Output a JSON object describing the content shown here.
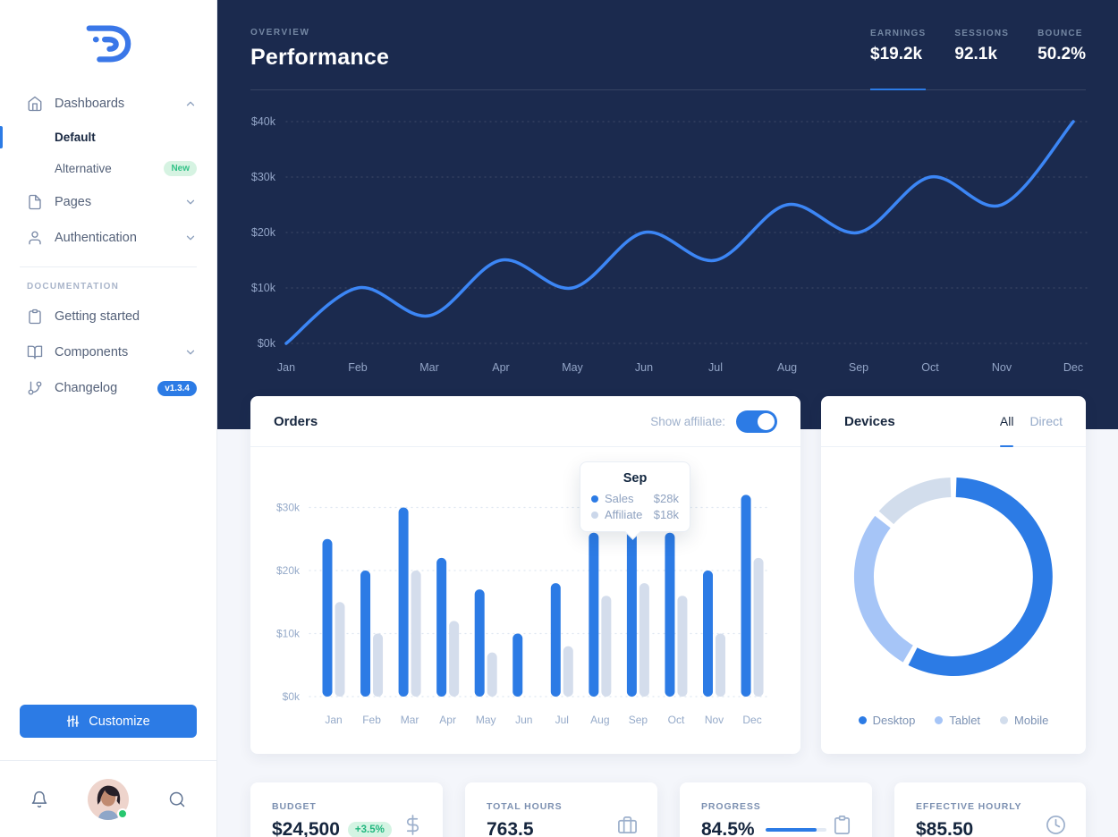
{
  "colors": {
    "primary": "#2c7be5",
    "dark_bg": "#1b2a4e",
    "page_bg": "#f4f6fb",
    "muted": "#95aac9",
    "success": "#28c76f",
    "line": "#3c86f5",
    "bar_affiliate": "#d4ddec"
  },
  "sidebar": {
    "items": [
      {
        "label": "Dashboards",
        "icon": "home",
        "state": "expanded"
      },
      {
        "label": "Default",
        "active": true
      },
      {
        "label": "Alternative",
        "badge": "New"
      },
      {
        "label": "Pages",
        "icon": "file"
      },
      {
        "label": "Authentication",
        "icon": "user"
      }
    ],
    "section_label": "DOCUMENTATION",
    "doc_items": [
      {
        "label": "Getting started",
        "icon": "clipboard"
      },
      {
        "label": "Components",
        "icon": "book"
      },
      {
        "label": "Changelog",
        "icon": "git-branch",
        "badge": "v1.3.4"
      }
    ],
    "customize_label": "Customize"
  },
  "header": {
    "kicker": "OVERVIEW",
    "title": "Performance",
    "stats": [
      {
        "label": "EARNINGS",
        "value": "$19.2k",
        "active": true
      },
      {
        "label": "SESSIONS",
        "value": "92.1k"
      },
      {
        "label": "BOUNCE",
        "value": "50.2%"
      }
    ]
  },
  "orders_card": {
    "title": "Orders",
    "toggle_label": "Show affiliate:",
    "toggle_on": true,
    "tooltip": {
      "title": "Sep",
      "rows": [
        {
          "name": "Sales",
          "value": "$28k"
        },
        {
          "name": "Affiliate",
          "value": "$18k"
        }
      ]
    }
  },
  "devices_card": {
    "title": "Devices",
    "tabs": [
      {
        "label": "All",
        "active": true
      },
      {
        "label": "Direct"
      }
    ],
    "legend": [
      "Desktop",
      "Tablet",
      "Mobile"
    ]
  },
  "stat_cards": [
    {
      "label": "BUDGET",
      "value": "$24,500",
      "badge": "+3.5%",
      "icon": "dollar-sign"
    },
    {
      "label": "TOTAL HOURS",
      "value": "763.5",
      "icon": "briefcase"
    },
    {
      "label": "PROGRESS",
      "value": "84.5%",
      "icon": "clipboard",
      "progress": 84.5
    },
    {
      "label": "EFFECTIVE HOURLY",
      "value": "$85.50",
      "icon": "clock"
    }
  ],
  "chart_data": [
    {
      "id": "performance-line",
      "type": "line",
      "title": "Performance earnings by month",
      "x": [
        "Jan",
        "Feb",
        "Mar",
        "Apr",
        "May",
        "Jun",
        "Jul",
        "Aug",
        "Sep",
        "Oct",
        "Nov",
        "Dec"
      ],
      "series": [
        {
          "name": "Earnings ($k)",
          "values": [
            0,
            10,
            5,
            15,
            10,
            20,
            15,
            25,
            20,
            30,
            25,
            40
          ]
        }
      ],
      "ylim": [
        0,
        40
      ],
      "yticks": [
        "$0k",
        "$10k",
        "$20k",
        "$30k",
        "$40k"
      ],
      "grid": "dotted-horizontal",
      "line_color": "#3c86f5"
    },
    {
      "id": "orders-bars",
      "type": "bar",
      "title": "Orders",
      "categories": [
        "Jan",
        "Feb",
        "Mar",
        "Apr",
        "May",
        "Jun",
        "Jul",
        "Aug",
        "Sep",
        "Oct",
        "Nov",
        "Dec"
      ],
      "series": [
        {
          "name": "Sales",
          "color": "#2c7be5",
          "values": [
            25,
            20,
            30,
            22,
            17,
            10,
            18,
            26,
            28,
            26,
            20,
            32
          ]
        },
        {
          "name": "Affiliate",
          "color": "#d4ddec",
          "values": [
            15,
            10,
            20,
            12,
            7,
            0,
            8,
            16,
            18,
            16,
            10,
            22
          ]
        }
      ],
      "ylim": [
        0,
        32
      ],
      "yticks": [
        "$0k",
        "$10k",
        "$20k",
        "$30k"
      ],
      "legend_position": "tooltip"
    },
    {
      "id": "devices-donut",
      "type": "pie",
      "title": "Devices",
      "labels": [
        "Desktop",
        "Tablet",
        "Mobile"
      ],
      "values": [
        58,
        28,
        14
      ],
      "unit": "percent",
      "colors": [
        "#2c7be5",
        "#a6c5f7",
        "#d2ddec"
      ]
    }
  ]
}
